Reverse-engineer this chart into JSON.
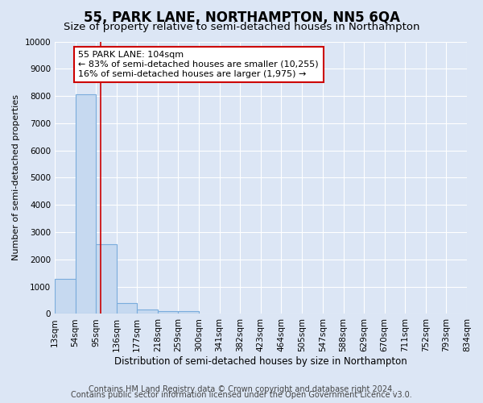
{
  "title": "55, PARK LANE, NORTHAMPTON, NN5 6QA",
  "subtitle": "Size of property relative to semi-detached houses in Northampton",
  "xlabel": "Distribution of semi-detached houses by size in Northampton",
  "ylabel": "Number of semi-detached properties",
  "footer_line1": "Contains HM Land Registry data © Crown copyright and database right 2024.",
  "footer_line2": "Contains public sector information licensed under the Open Government Licence v3.0.",
  "bin_edges": [
    13,
    54,
    95,
    136,
    177,
    218,
    259,
    300,
    341,
    382,
    423,
    464,
    505,
    547,
    588,
    629,
    670,
    711,
    752,
    793,
    834
  ],
  "bar_heights": [
    1300,
    8050,
    2550,
    400,
    175,
    100,
    100,
    0,
    0,
    0,
    0,
    0,
    0,
    0,
    0,
    0,
    0,
    0,
    0,
    0
  ],
  "bar_color": "#c6d9f0",
  "bar_edge_color": "#7aacdc",
  "property_size": 104,
  "red_line_color": "#cc0000",
  "annotation_line1": "55 PARK LANE: 104sqm",
  "annotation_line2": "← 83% of semi-detached houses are smaller (10,255)",
  "annotation_line3": "16% of semi-detached houses are larger (1,975) →",
  "annotation_box_color": "#ffffff",
  "annotation_box_edge": "#cc0000",
  "ylim": [
    0,
    10000
  ],
  "yticks": [
    0,
    1000,
    2000,
    3000,
    4000,
    5000,
    6000,
    7000,
    8000,
    9000,
    10000
  ],
  "background_color": "#dce6f5",
  "grid_color": "#ffffff",
  "title_fontsize": 12,
  "subtitle_fontsize": 9.5,
  "axis_label_fontsize": 8.5,
  "ylabel_fontsize": 8,
  "tick_fontsize": 7.5,
  "footer_fontsize": 7
}
